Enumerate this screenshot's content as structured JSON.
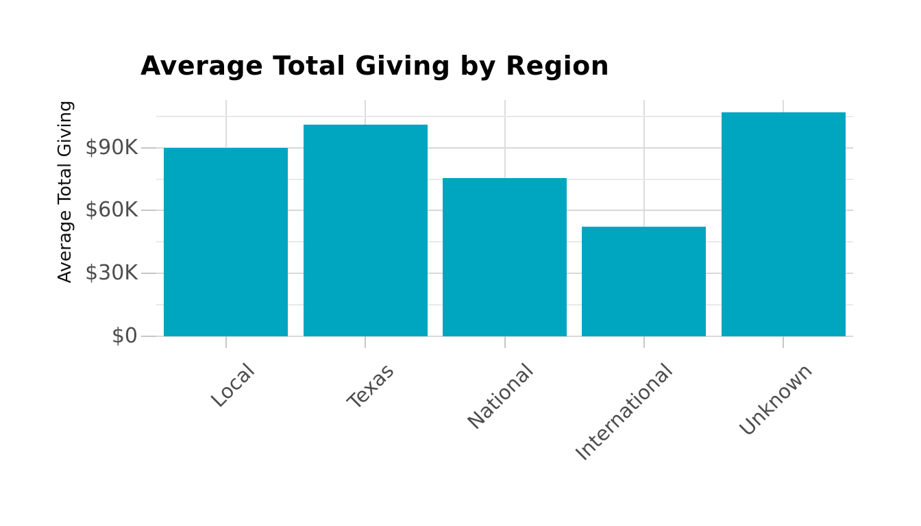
{
  "chart_data": {
    "type": "bar",
    "title": "Average Total Giving by Region",
    "ylabel": "Average Total Giving",
    "xlabel": "",
    "categories": [
      "Local",
      "Texas",
      "National",
      "International",
      "Unknown"
    ],
    "values": [
      90000,
      101000,
      75500,
      52200,
      107000
    ],
    "yticks": [
      {
        "value": 0,
        "label": "$0"
      },
      {
        "value": 30000,
        "label": "$30K"
      },
      {
        "value": 60000,
        "label": "$60K"
      },
      {
        "value": 90000,
        "label": "$90K"
      }
    ],
    "minor_yticks": [
      15000,
      45000,
      75000,
      105000
    ],
    "ylim": [
      0,
      112800
    ],
    "grid": true,
    "legend_position": "none",
    "bar_width_fraction": 0.89,
    "colors": {
      "bar": "#00a5c0",
      "grid_major": "#d8d8d8",
      "grid_minor": "#e9e9e9",
      "grid_vertical": "#dcdcdc",
      "tick_mark": "#c6c6c6",
      "tick_label": "#4d4d4d",
      "title_text": "#000000",
      "axis_label_text": "#111111",
      "background": "#ffffff"
    }
  }
}
